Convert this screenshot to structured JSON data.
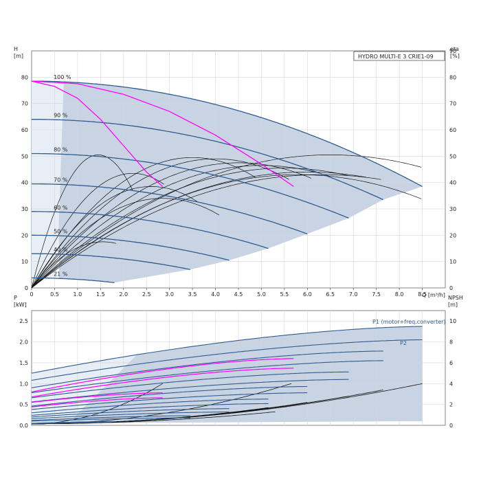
{
  "chart_data": [
    {
      "type": "line",
      "title": "HYDRO MULTI-E 3 CRIE1-09",
      "xlabel": "Q [m³/h]",
      "ylabel_left": "H\n[m]",
      "ylabel_right": "eta\n[%]",
      "xlim": [
        0,
        9.0
      ],
      "ylim_left": [
        0,
        90
      ],
      "ylim_right": [
        0,
        90
      ],
      "x_ticks": [
        "0",
        "0.5",
        "1.0",
        "1.5",
        "2.0",
        "2.5",
        "3.0",
        "3.5",
        "4.0",
        "4.5",
        "5.0",
        "5.5",
        "6.0",
        "6.5",
        "7.0",
        "7.5",
        "8.0",
        "8.5"
      ],
      "y_ticks_left": [
        "0",
        "10",
        "20",
        "30",
        "40",
        "50",
        "60",
        "70",
        "80"
      ],
      "y_ticks_right": [
        "0",
        "10",
        "20",
        "30",
        "40",
        "50",
        "60",
        "70",
        "80",
        "90"
      ],
      "grid": true,
      "colors": {
        "speed_curve": "#2f5c8e",
        "duty_region": "#c8d4e4",
        "efficiency": "#111111",
        "highlight": "#ff00ff"
      },
      "speed_curves": [
        {
          "name": "100 %",
          "qmax": 8.5,
          "h0": 78.5,
          "hend": 38.5
        },
        {
          "name": "90 %",
          "qmax": 7.65,
          "h0": 64.0,
          "hend": 33.5
        },
        {
          "name": "80 %",
          "qmax": 6.9,
          "h0": 51.0,
          "hend": 26.5
        },
        {
          "name": "70 %",
          "qmax": 6.0,
          "h0": 39.5,
          "hend": 20.5
        },
        {
          "name": "60 %",
          "qmax": 5.15,
          "h0": 29.0,
          "hend": 15.0
        },
        {
          "name": "50 %",
          "qmax": 4.3,
          "h0": 20.0,
          "hend": 10.5
        },
        {
          "name": "40 %",
          "qmax": 3.45,
          "h0": 13.0,
          "hend": 7.0
        },
        {
          "name": "21 %",
          "qmax": 1.8,
          "h0": 3.8,
          "hend": 2.0
        }
      ],
      "highlight_curves": [
        {
          "x": [
            0,
            0.5,
            1.0,
            1.5,
            2.0,
            2.5,
            2.85
          ],
          "y": [
            78.5,
            76.5,
            72.0,
            64.0,
            54.0,
            44.0,
            38.5
          ]
        },
        {
          "x": [
            0,
            1.0,
            2.0,
            3.0,
            4.0,
            5.0,
            5.7
          ],
          "y": [
            78.5,
            77.5,
            73.5,
            67.0,
            58.0,
            47.0,
            38.5
          ]
        }
      ],
      "efficiency_peaks": [
        {
          "peak_q": 1.45,
          "peak_eta": 50.5,
          "qmax": 2.2
        },
        {
          "peak_q": 2.2,
          "peak_eta": 43.5,
          "qmax": 2.9
        },
        {
          "peak_q": 2.6,
          "peak_eta": 38.5,
          "qmax": 3.6
        },
        {
          "peak_q": 2.85,
          "peak_eta": 34.0,
          "qmax": 4.1
        },
        {
          "peak_q": 1.55,
          "peak_eta": 17.5,
          "qmax": 1.85
        },
        {
          "peak_q": 3.5,
          "peak_eta": 49.5,
          "qmax": 4.9
        },
        {
          "peak_q": 4.0,
          "peak_eta": 49.0,
          "qmax": 5.6
        },
        {
          "peak_q": 4.5,
          "peak_eta": 47.5,
          "qmax": 6.1
        },
        {
          "peak_q": 5.0,
          "peak_eta": 46.5,
          "qmax": 6.5
        },
        {
          "peak_q": 5.5,
          "peak_eta": 45.5,
          "qmax": 6.9
        },
        {
          "peak_q": 6.0,
          "peak_eta": 44.0,
          "qmax": 7.3
        },
        {
          "peak_q": 6.3,
          "peak_eta": 43.0,
          "qmax": 7.6
        },
        {
          "peak_q": 6.5,
          "peak_eta": 50.5,
          "qmax": 8.5
        },
        {
          "peak_q": 5.8,
          "peak_eta": 43.0,
          "qmax": 8.5
        }
      ]
    },
    {
      "type": "line",
      "xlabel": "",
      "ylabel_left": "P\n[kW]",
      "ylabel_right": "NPSH\n[m]",
      "xlim": [
        0,
        9.0
      ],
      "ylim_left": [
        0,
        2.75
      ],
      "ylim_right": [
        0,
        11
      ],
      "y_ticks_left": [
        "0.0",
        "0.5",
        "1.0",
        "1.5",
        "2.0",
        "2.5"
      ],
      "y_ticks_right": [
        "0",
        "2",
        "4",
        "6",
        "8",
        "10"
      ],
      "grid": true,
      "series_labels": [
        "P1 (motor+freq.converter)",
        "P2"
      ],
      "power_curves": [
        {
          "qmax": 8.5,
          "p0": 1.25,
          "pend": 2.37
        },
        {
          "qmax": 8.5,
          "p0": 1.08,
          "pend": 2.05
        },
        {
          "qmax": 7.65,
          "p0": 0.9,
          "pend": 1.78
        },
        {
          "qmax": 7.65,
          "p0": 0.78,
          "pend": 1.55
        },
        {
          "qmax": 6.9,
          "p0": 0.66,
          "pend": 1.28
        },
        {
          "qmax": 6.9,
          "p0": 0.56,
          "pend": 1.1
        },
        {
          "qmax": 6.0,
          "p0": 0.46,
          "pend": 0.93
        },
        {
          "qmax": 6.0,
          "p0": 0.38,
          "pend": 0.78
        },
        {
          "qmax": 5.15,
          "p0": 0.3,
          "pend": 0.63
        },
        {
          "qmax": 5.15,
          "p0": 0.24,
          "pend": 0.52
        },
        {
          "qmax": 4.3,
          "p0": 0.2,
          "pend": 0.4
        },
        {
          "qmax": 4.3,
          "p0": 0.16,
          "pend": 0.32
        },
        {
          "qmax": 3.45,
          "p0": 0.12,
          "pend": 0.23
        },
        {
          "qmax": 3.45,
          "p0": 0.1,
          "pend": 0.18
        },
        {
          "qmax": 1.8,
          "p0": 0.05,
          "pend": 0.09
        },
        {
          "qmax": 1.8,
          "p0": 0.04,
          "pend": 0.07
        }
      ],
      "highlight_power": [
        {
          "qmax": 5.7,
          "p0": 0.8,
          "pend": 1.6
        },
        {
          "qmax": 5.7,
          "p0": 0.68,
          "pend": 1.37
        },
        {
          "qmax": 2.85,
          "p0": 0.55,
          "pend": 0.78
        },
        {
          "qmax": 2.85,
          "p0": 0.44,
          "pend": 0.66
        }
      ],
      "npsh_curves": [
        {
          "qmax": 8.5,
          "n_at_qmax": 4.0
        },
        {
          "qmax": 7.65,
          "n_at_qmax": 3.4
        },
        {
          "qmax": 6.9,
          "n_at_qmax": 2.8
        },
        {
          "qmax": 6.0,
          "n_at_qmax": 2.2
        },
        {
          "qmax": 5.65,
          "n_at_qmax": 4.0
        },
        {
          "qmax": 5.15,
          "n_at_qmax": 1.7
        },
        {
          "qmax": 4.3,
          "n_at_qmax": 1.2
        },
        {
          "qmax": 3.45,
          "n_at_qmax": 0.8
        },
        {
          "qmax": 2.85,
          "n_at_qmax": 4.0
        },
        {
          "qmax": 1.8,
          "n_at_qmax": 0.3
        },
        {
          "qmax": 5.3,
          "n_at_qmax": 1.3
        }
      ]
    }
  ]
}
